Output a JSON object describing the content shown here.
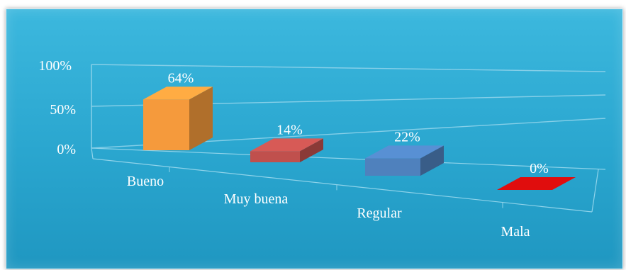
{
  "chart_data": {
    "type": "bar",
    "categories": [
      "Bueno",
      "Muy buena",
      "Regular",
      "Mala"
    ],
    "values": [
      64,
      14,
      22,
      0
    ],
    "data_labels": [
      "64%",
      "14%",
      "22%",
      "0%"
    ],
    "colors": [
      "#f59a3c",
      "#c0504d",
      "#4f81bd",
      "#e00d0d"
    ],
    "ylim": [
      0,
      100
    ],
    "yticks": [
      "0%",
      "50%",
      "100%"
    ],
    "ytick_values": [
      0,
      50,
      100
    ],
    "grid": true,
    "legend": "none",
    "title": "",
    "xlabel": "",
    "ylabel": ""
  }
}
